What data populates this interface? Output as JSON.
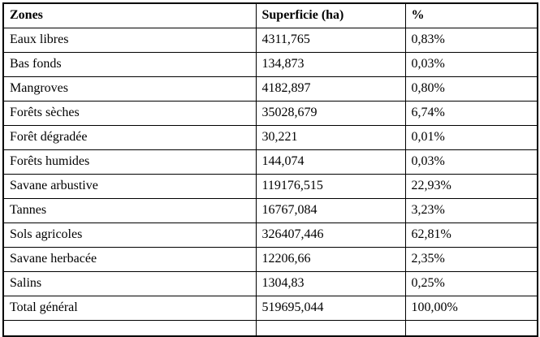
{
  "colors": {
    "background": "#ffffff",
    "border": "#000000",
    "text": "#000000"
  },
  "table": {
    "columns": {
      "zone": "Zones",
      "superficie": "Superficie (ha)",
      "percent": "%"
    },
    "rows": [
      {
        "zone": "Eaux libres",
        "superficie": "4311,765",
        "percent": "0,83%"
      },
      {
        "zone": "Bas fonds",
        "superficie": "134,873",
        "percent": "0,03%"
      },
      {
        "zone": "Mangroves",
        "superficie": "4182,897",
        "percent": "0,80%"
      },
      {
        "zone": "Forêts sèches",
        "superficie": "35028,679",
        "percent": "6,74%"
      },
      {
        "zone": "Forêt dégradée",
        "superficie": "30,221",
        "percent": "0,01%"
      },
      {
        "zone": "Forêts humides",
        "superficie": "144,074",
        "percent": "0,03%"
      },
      {
        "zone": "Savane arbustive",
        "superficie": "119176,515",
        "percent": "22,93%"
      },
      {
        "zone": "Tannes",
        "superficie": "16767,084",
        "percent": "3,23%"
      },
      {
        "zone": "Sols agricoles",
        "superficie": "326407,446",
        "percent": "62,81%"
      },
      {
        "zone": "Savane herbacée",
        "superficie": "12206,66",
        "percent": "2,35%"
      },
      {
        "zone": "Salins",
        "superficie": "1304,83",
        "percent": "0,25%"
      },
      {
        "zone": "Total général",
        "superficie": "519695,044",
        "percent": "100,00%"
      }
    ]
  }
}
